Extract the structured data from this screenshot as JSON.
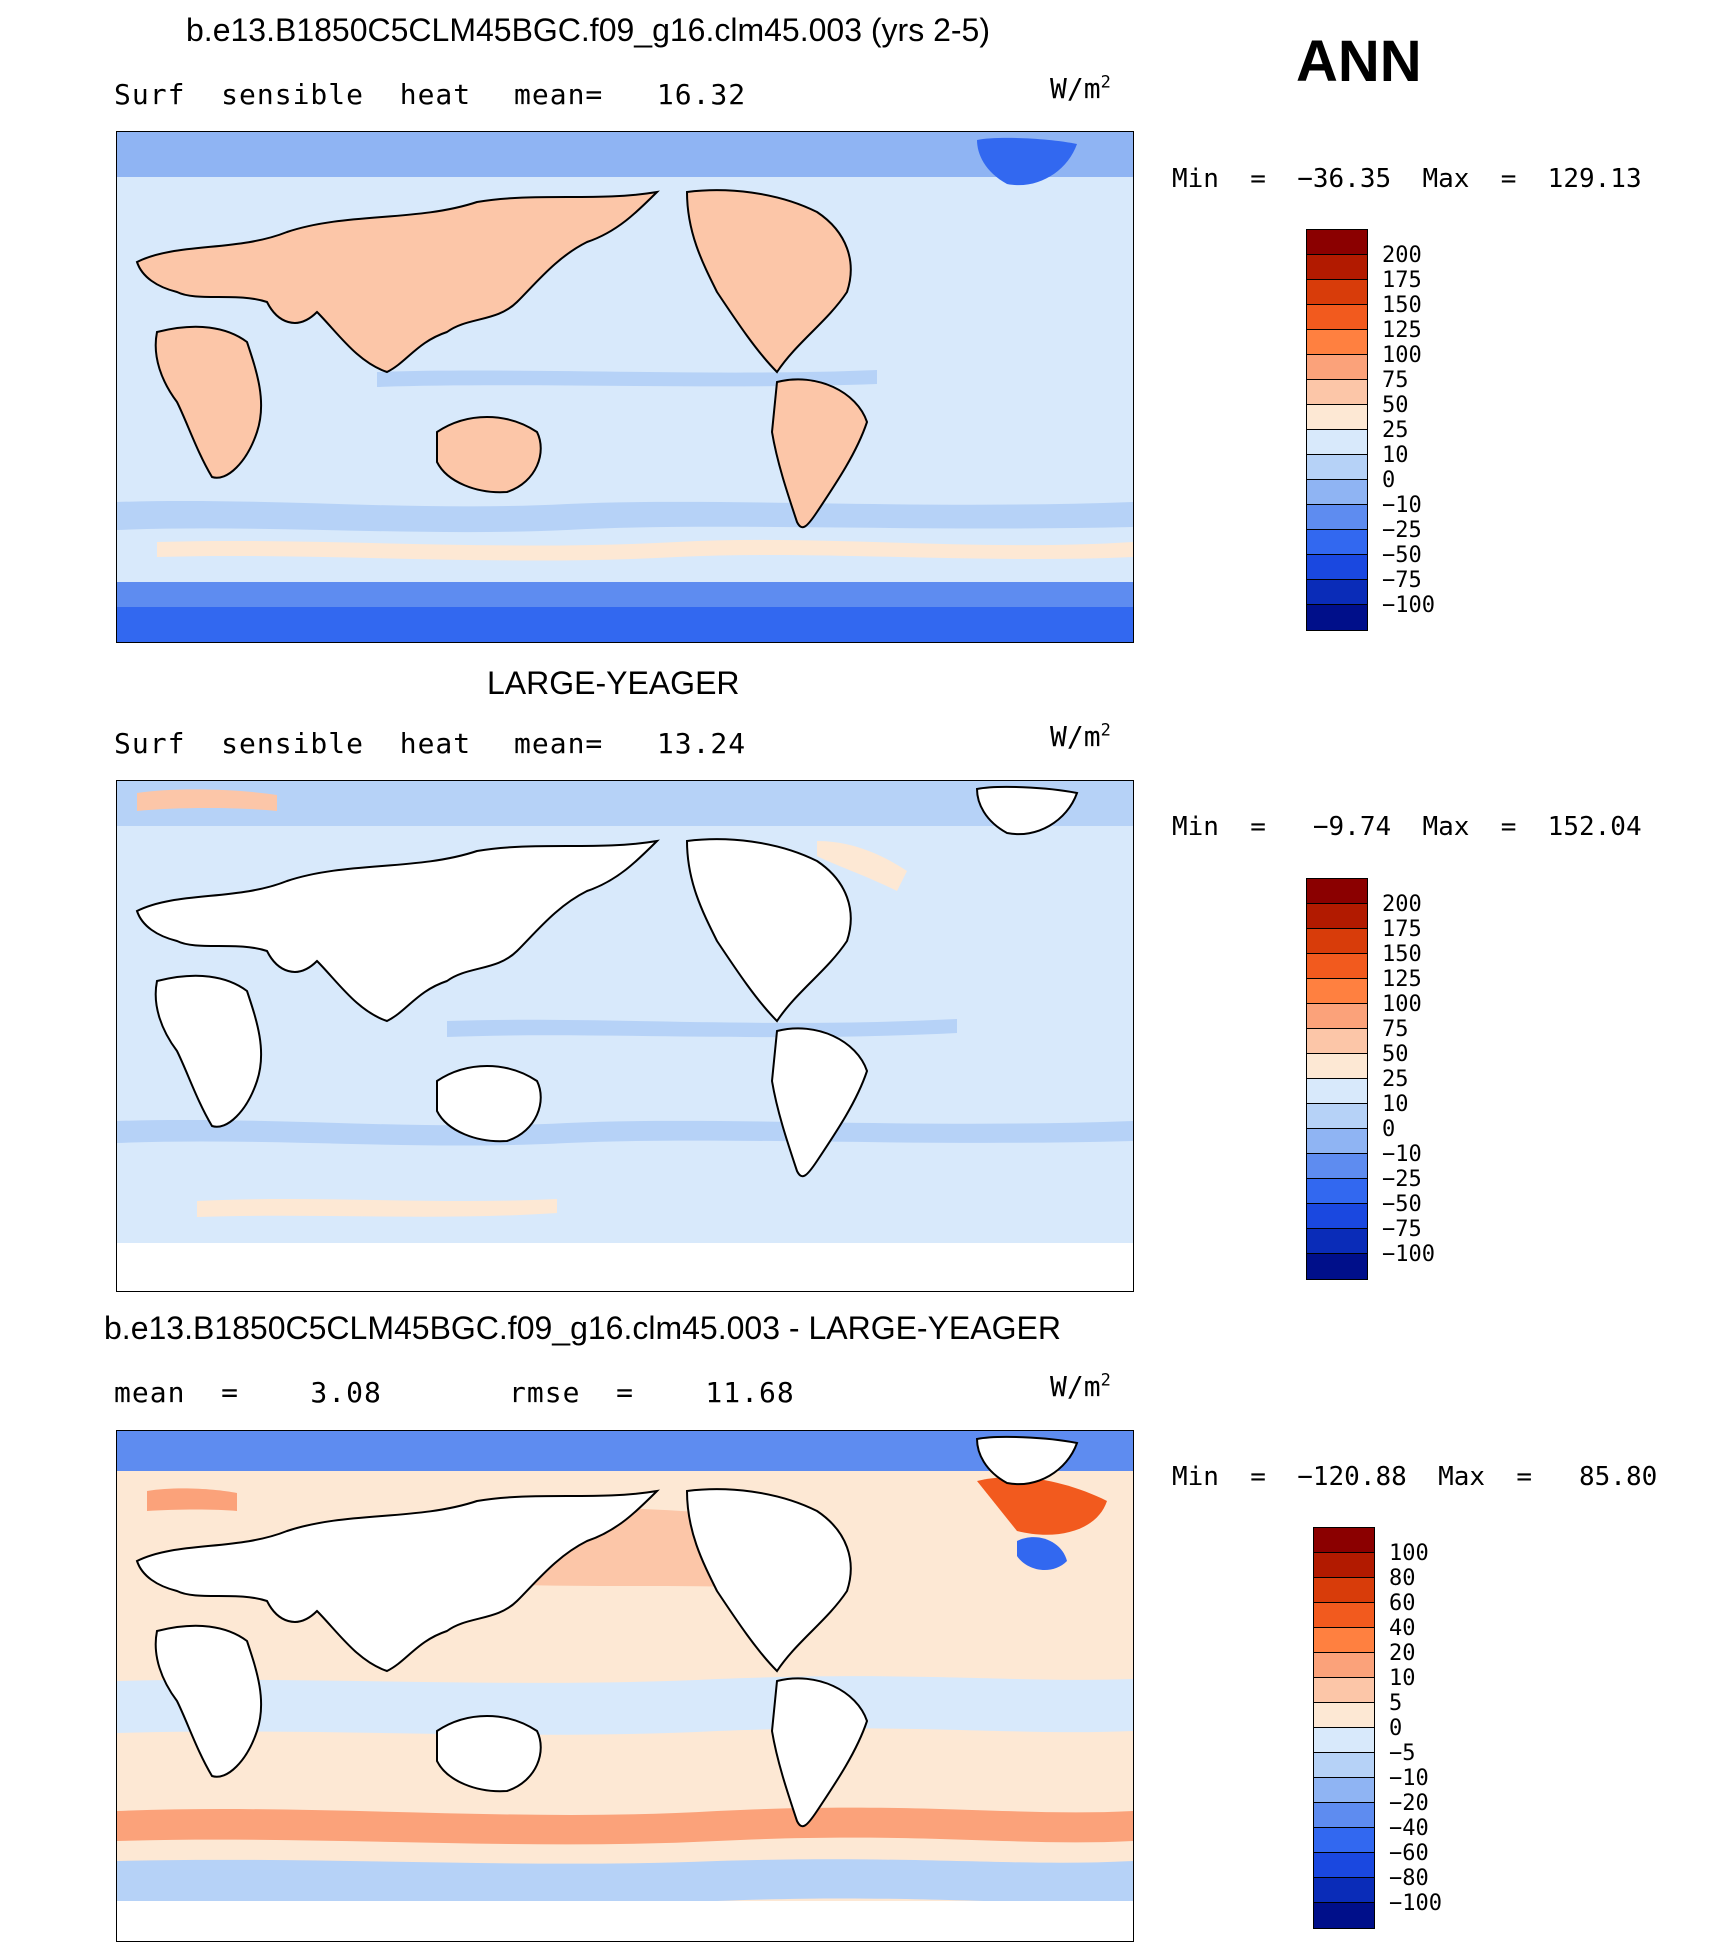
{
  "season": "ANN",
  "units_base": "W/m",
  "units_exp": "2",
  "panels": [
    {
      "title": "b.e13.B1850C5CLM45BGC.f09_g16.clm45.003 (yrs 2-5)",
      "left_label": "Surf  sensible  heat",
      "right_label": "mean=   16.32",
      "minmax": "Min  =  −36.35  Max  =  129.13",
      "colorbar": {
        "colors": [
          "#8b0000",
          "#b21a00",
          "#d83c0a",
          "#f25a1e",
          "#ff8040",
          "#fba27a",
          "#fcc6a8",
          "#fde8d4",
          "#d8e9fb",
          "#b6d2f7",
          "#8fb4f3",
          "#5e8cf0",
          "#3268f0",
          "#1a48e0",
          "#0a2cb8",
          "#000f8a"
        ],
        "labels": [
          "200",
          "175",
          "150",
          "125",
          "100",
          "75",
          "50",
          "25",
          "10",
          "0",
          "−10",
          "−25",
          "−50",
          "−75",
          "−100"
        ]
      }
    },
    {
      "title": "LARGE-YEAGER",
      "left_label": "Surf  sensible  heat",
      "right_label": "mean=   13.24",
      "minmax": "Min  =   −9.74  Max  =  152.04",
      "colorbar": {
        "colors": [
          "#8b0000",
          "#b21a00",
          "#d83c0a",
          "#f25a1e",
          "#ff8040",
          "#fba27a",
          "#fcc6a8",
          "#fde8d4",
          "#d8e9fb",
          "#b6d2f7",
          "#8fb4f3",
          "#5e8cf0",
          "#3268f0",
          "#1a48e0",
          "#0a2cb8",
          "#000f8a"
        ],
        "labels": [
          "200",
          "175",
          "150",
          "125",
          "100",
          "75",
          "50",
          "25",
          "10",
          "0",
          "−10",
          "−25",
          "−50",
          "−75",
          "−100"
        ]
      }
    },
    {
      "title": "b.e13.B1850C5CLM45BGC.f09_g16.clm45.003 - LARGE-YEAGER",
      "left_label": "mean  =    3.08",
      "right_label": "rmse  =    11.68",
      "minmax": "Min  =  −120.88  Max  =   85.80",
      "colorbar": {
        "colors": [
          "#8b0000",
          "#b21a00",
          "#d83c0a",
          "#f25a1e",
          "#ff8040",
          "#fba27a",
          "#fcc6a8",
          "#fde8d4",
          "#d8e9fb",
          "#b6d2f7",
          "#8fb4f3",
          "#5e8cf0",
          "#3268f0",
          "#1a48e0",
          "#0a2cb8",
          "#000f8a"
        ],
        "labels": [
          "100",
          "80",
          "60",
          "40",
          "20",
          "10",
          "5",
          "0",
          "−5",
          "−10",
          "−20",
          "−40",
          "−60",
          "−80",
          "−100"
        ]
      }
    }
  ]
}
